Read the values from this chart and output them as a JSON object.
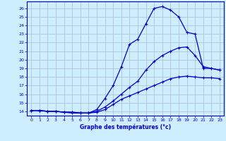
{
  "title": "Graphe des températures (°c)",
  "background_color": "#cceeff",
  "grid_color": "#aabbcc",
  "line_color": "#0000cc",
  "xlim": [
    -0.5,
    23.5
  ],
  "ylim": [
    13.5,
    26.8
  ],
  "yticks": [
    14,
    15,
    16,
    17,
    18,
    19,
    20,
    21,
    22,
    23,
    24,
    25,
    26
  ],
  "xticks": [
    0,
    1,
    2,
    3,
    4,
    5,
    6,
    7,
    8,
    9,
    10,
    11,
    12,
    13,
    14,
    15,
    16,
    17,
    18,
    19,
    20,
    21,
    22,
    23
  ],
  "series": [
    {
      "x": [
        0,
        1,
        2,
        3,
        4,
        5,
        6,
        7,
        8,
        9,
        10,
        11,
        12,
        13,
        14,
        15,
        16,
        17,
        18,
        19,
        20,
        21,
        22,
        23
      ],
      "y": [
        14.1,
        14.1,
        14.0,
        14.0,
        13.9,
        13.9,
        13.8,
        13.8,
        13.9,
        14.2,
        14.8,
        15.4,
        15.8,
        16.2,
        16.6,
        17.0,
        17.4,
        17.8,
        18.0,
        18.1,
        18.0,
        17.9,
        17.9,
        17.8
      ]
    },
    {
      "x": [
        0,
        1,
        2,
        3,
        4,
        5,
        6,
        7,
        8,
        9,
        10,
        11,
        12,
        13,
        14,
        15,
        16,
        17,
        18,
        19,
        20,
        21,
        22,
        23
      ],
      "y": [
        14.1,
        14.1,
        14.0,
        14.0,
        13.9,
        13.9,
        13.8,
        13.8,
        14.0,
        14.5,
        15.2,
        16.0,
        16.8,
        17.5,
        18.8,
        19.8,
        20.5,
        21.0,
        21.4,
        21.5,
        20.5,
        19.2,
        19.0,
        18.8
      ]
    },
    {
      "x": [
        0,
        1,
        2,
        3,
        4,
        5,
        6,
        7,
        8,
        9,
        10,
        11,
        12,
        13,
        14,
        15,
        16,
        17,
        18,
        19,
        20,
        21,
        22,
        23
      ],
      "y": [
        14.1,
        14.1,
        14.0,
        14.0,
        13.9,
        13.8,
        13.8,
        13.8,
        14.2,
        15.5,
        17.0,
        19.2,
        21.8,
        22.4,
        24.2,
        26.0,
        26.2,
        25.8,
        25.0,
        23.2,
        23.0,
        19.0,
        19.0,
        18.8
      ]
    }
  ]
}
